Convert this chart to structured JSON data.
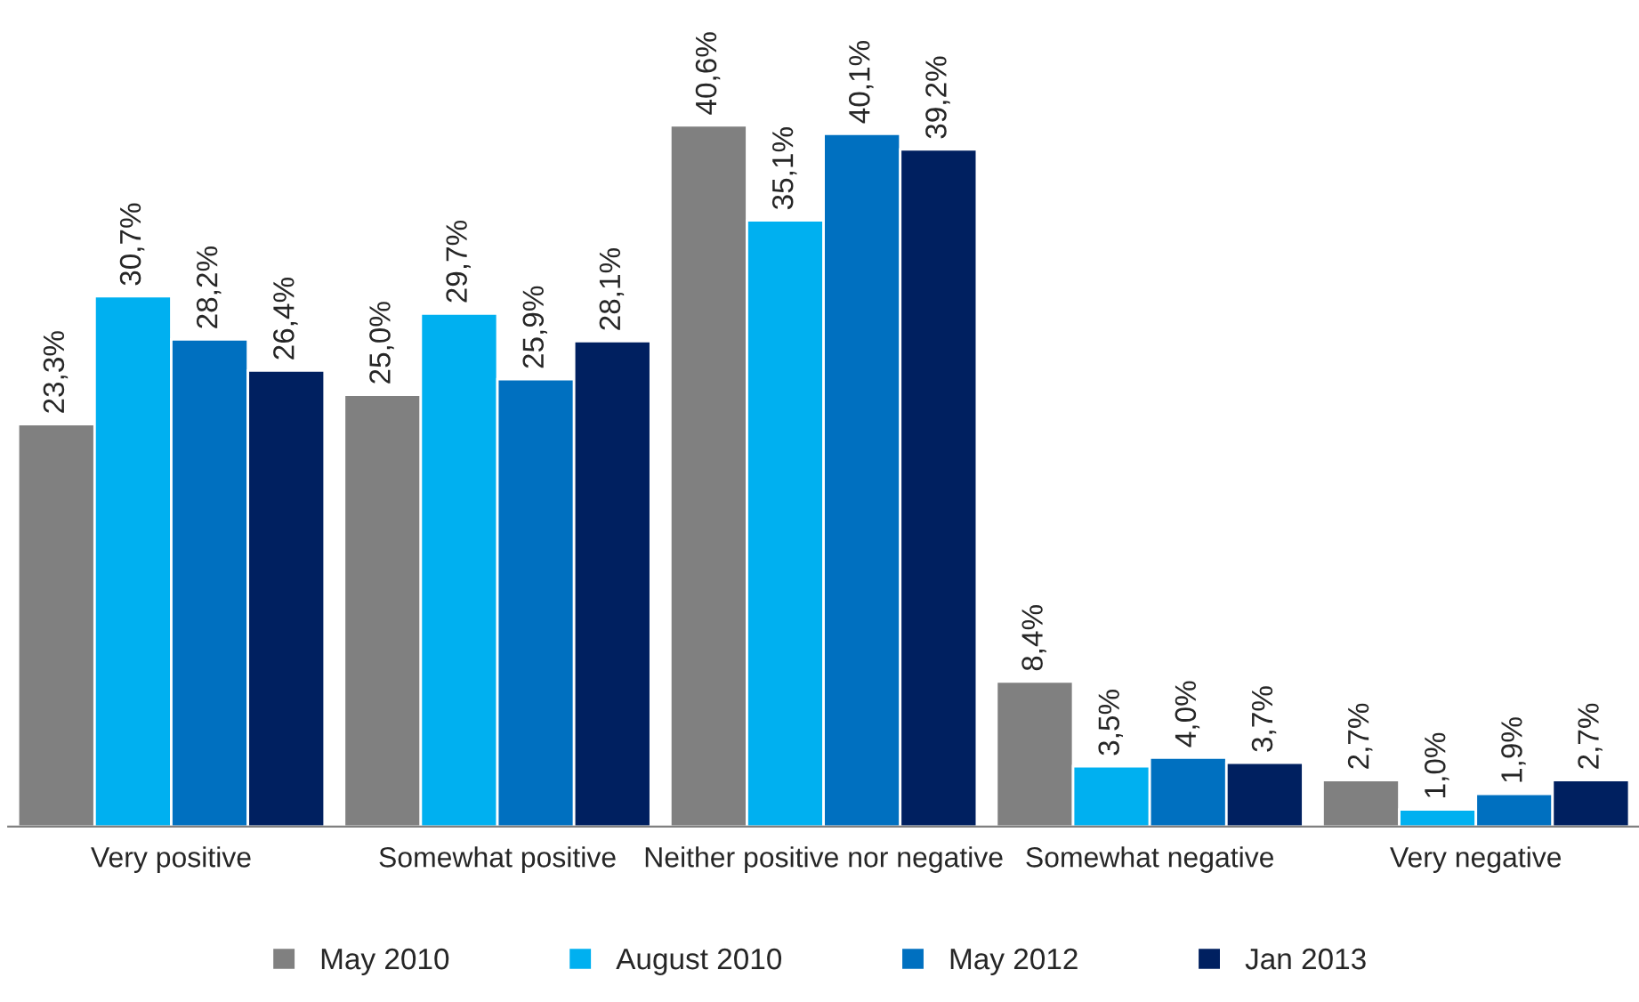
{
  "chart_data": {
    "type": "bar",
    "categories": [
      "Very positive",
      "Somewhat positive",
      "Neither positive nor negative",
      "Somewhat negative",
      "Very negative"
    ],
    "series": [
      {
        "name": "May 2010",
        "color": "#808080",
        "values": [
          23.3,
          25.0,
          40.6,
          8.4,
          2.7
        ],
        "value_labels": [
          "23,3%",
          "25,0%",
          "40,6%",
          "8,4%",
          "2,7%"
        ]
      },
      {
        "name": "August 2010",
        "color": "#00b0f0",
        "values": [
          30.7,
          29.7,
          35.1,
          3.5,
          1.0
        ],
        "value_labels": [
          "30,7%",
          "29,7%",
          "35,1%",
          "3,5%",
          "1,0%"
        ]
      },
      {
        "name": "May 2012",
        "color": "#0070c0",
        "values": [
          28.2,
          25.9,
          40.1,
          4.0,
          1.9
        ],
        "value_labels": [
          "28,2%",
          "25,9%",
          "40,1%",
          "4,0%",
          "1,9%"
        ]
      },
      {
        "name": "Jan 2013",
        "color": "#002060",
        "values": [
          26.4,
          28.1,
          39.2,
          3.7,
          2.7
        ],
        "value_labels": [
          "26,4%",
          "28,1%",
          "39,2%",
          "3,7%",
          "2,7%"
        ]
      }
    ],
    "legend": "bottom",
    "grid": false
  }
}
